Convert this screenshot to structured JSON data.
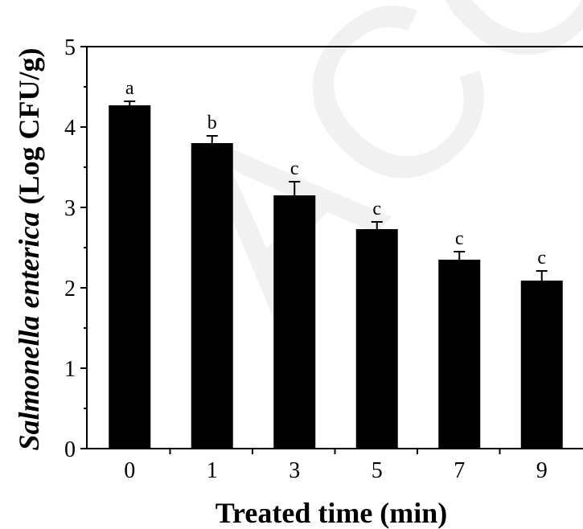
{
  "watermark_text": "ACCEPTED",
  "chart_data": {
    "type": "bar",
    "categories": [
      "0",
      "1",
      "3",
      "5",
      "7",
      "9"
    ],
    "values": [
      4.27,
      3.8,
      3.15,
      2.73,
      2.35,
      2.09
    ],
    "errors": [
      0.05,
      0.09,
      0.17,
      0.09,
      0.1,
      0.12
    ],
    "significance": [
      "a",
      "b",
      "c",
      "c",
      "c",
      "c"
    ],
    "xlabel": "Treated time (min)",
    "ylabel_italic": "Salmonella enterica",
    "ylabel_rest": " (Log CFU/g)",
    "ylim": [
      0,
      5
    ],
    "yticks": [
      "0",
      "1",
      "2",
      "3",
      "4",
      "5"
    ],
    "bar_color": "#000000",
    "grid": false
  }
}
